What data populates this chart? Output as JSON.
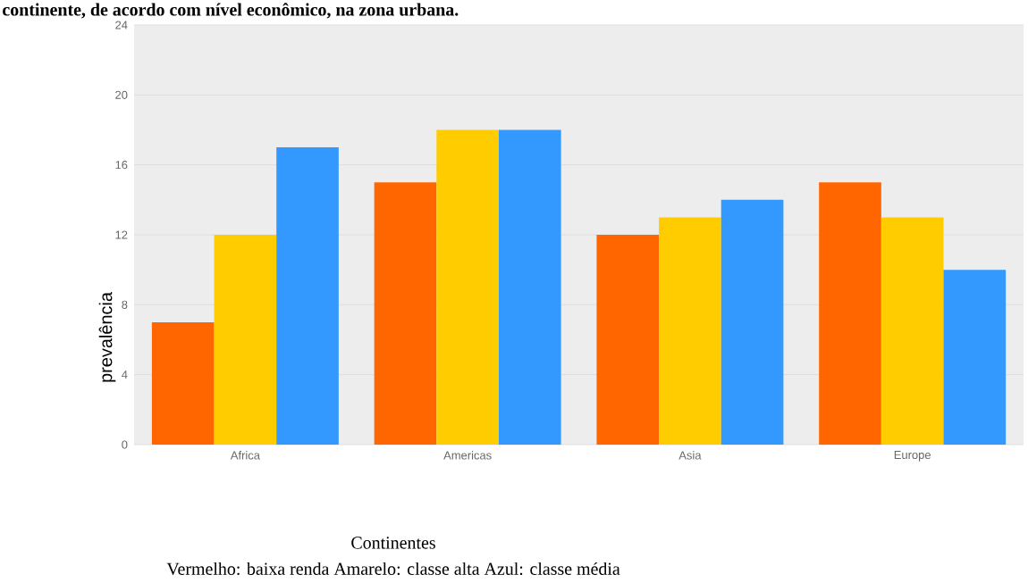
{
  "chart_data": {
    "type": "bar",
    "title": "continente, de acordo com nível econômico, na zona urbana.",
    "xlabel": "Continentes",
    "ylabel": "prevalência",
    "categories": [
      "Africa",
      "Americas",
      "Asia",
      "Europe"
    ],
    "series": [
      {
        "color": "#ff6600",
        "values": [
          7,
          15,
          12,
          15
        ]
      },
      {
        "color": "#ffcc00",
        "values": [
          12,
          18,
          13,
          13
        ]
      },
      {
        "color": "#3399ff",
        "values": [
          17,
          18,
          14,
          10
        ]
      }
    ],
    "ylim": [
      0,
      24
    ],
    "yticks": [
      0,
      4,
      8,
      12,
      16,
      20,
      24
    ],
    "grid": "y",
    "annotations": [
      "Vermelho: baixa renda  Amarelo: classe alta  Azul: classe média"
    ]
  }
}
